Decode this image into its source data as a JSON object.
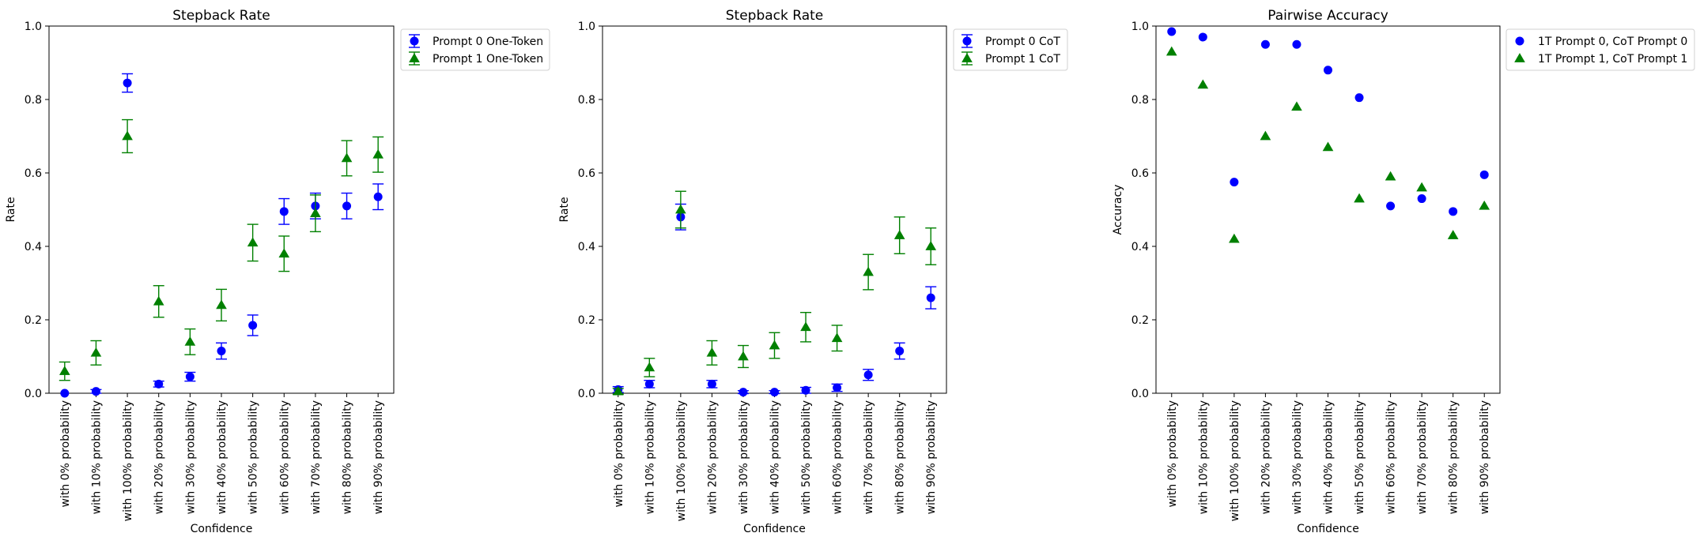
{
  "chart_data": [
    {
      "type": "scatter",
      "title": "Stepback Rate",
      "xlabel": "Confidence",
      "ylabel": "Rate",
      "ylim": [
        0,
        1
      ],
      "yticks": [
        "0.0",
        "0.2",
        "0.4",
        "0.6",
        "0.8",
        "1.0"
      ],
      "categories": [
        "with 0% probability",
        "with 10% probability",
        "with 100% probability",
        "with 20% probability",
        "with 30% probability",
        "with 40% probability",
        "with 50% probability",
        "with 60% probability",
        "with 70% probability",
        "with 80% probability",
        "with 90% probability"
      ],
      "legend_position": "outside-upper-right",
      "series": [
        {
          "name": "Prompt 0 One-Token",
          "marker": "circle",
          "color": "#0000ff",
          "values": [
            0.0,
            0.005,
            0.845,
            0.025,
            0.045,
            0.115,
            0.185,
            0.495,
            0.51,
            0.51,
            0.535
          ],
          "errors": [
            0.0,
            0.005,
            0.025,
            0.008,
            0.012,
            0.022,
            0.028,
            0.035,
            0.035,
            0.035,
            0.035
          ]
        },
        {
          "name": "Prompt 1 One-Token",
          "marker": "triangle",
          "color": "#008000",
          "values": [
            0.06,
            0.11,
            0.7,
            0.25,
            0.14,
            0.24,
            0.41,
            0.38,
            0.49,
            0.64,
            0.65
          ],
          "errors": [
            0.025,
            0.033,
            0.045,
            0.043,
            0.035,
            0.043,
            0.05,
            0.048,
            0.05,
            0.048,
            0.048
          ]
        }
      ]
    },
    {
      "type": "scatter",
      "title": "Stepback Rate",
      "xlabel": "Confidence",
      "ylabel": "Rate",
      "ylim": [
        0,
        1
      ],
      "yticks": [
        "0.0",
        "0.2",
        "0.4",
        "0.6",
        "0.8",
        "1.0"
      ],
      "categories": [
        "with 0% probability",
        "with 10% probability",
        "with 100% probability",
        "with 20% probability",
        "with 30% probability",
        "with 40% probability",
        "with 50% probability",
        "with 60% probability",
        "with 70% probability",
        "with 80% probability",
        "with 90% probability"
      ],
      "legend_position": "outside-upper-right",
      "series": [
        {
          "name": "Prompt 0 CoT",
          "marker": "circle",
          "color": "#0000ff",
          "values": [
            0.01,
            0.025,
            0.48,
            0.025,
            0.003,
            0.003,
            0.008,
            0.015,
            0.05,
            0.115,
            0.26
          ],
          "errors": [
            0.008,
            0.01,
            0.035,
            0.01,
            0.004,
            0.004,
            0.008,
            0.01,
            0.015,
            0.022,
            0.03
          ]
        },
        {
          "name": "Prompt 1 CoT",
          "marker": "triangle",
          "color": "#008000",
          "values": [
            0.005,
            0.07,
            0.5,
            0.11,
            0.1,
            0.13,
            0.18,
            0.15,
            0.33,
            0.43,
            0.4
          ],
          "errors": [
            0.008,
            0.025,
            0.05,
            0.033,
            0.03,
            0.035,
            0.04,
            0.035,
            0.048,
            0.05,
            0.05
          ]
        }
      ]
    },
    {
      "type": "scatter",
      "title": "Pairwise Accuracy",
      "xlabel": "Confidence",
      "ylabel": "Accuracy",
      "ylim": [
        0,
        1
      ],
      "yticks": [
        "0.0",
        "0.2",
        "0.4",
        "0.6",
        "0.8",
        "1.0"
      ],
      "categories": [
        "with 0% probability",
        "with 10% probability",
        "with 100% probability",
        "with 20% probability",
        "with 30% probability",
        "with 40% probability",
        "with 50% probability",
        "with 60% probability",
        "with 70% probability",
        "with 80% probability",
        "with 90% probability"
      ],
      "legend_position": "outside-upper-right",
      "series": [
        {
          "name": "1T Prompt 0, CoT Prompt 0",
          "marker": "circle",
          "color": "#0000ff",
          "values": [
            0.985,
            0.97,
            0.575,
            0.95,
            0.95,
            0.88,
            0.805,
            0.51,
            0.53,
            0.495,
            0.595
          ]
        },
        {
          "name": "1T Prompt 1, CoT Prompt 1",
          "marker": "triangle",
          "color": "#008000",
          "values": [
            0.93,
            0.84,
            0.42,
            0.7,
            0.78,
            0.67,
            0.53,
            0.59,
            0.56,
            0.43,
            0.51
          ]
        }
      ]
    }
  ]
}
